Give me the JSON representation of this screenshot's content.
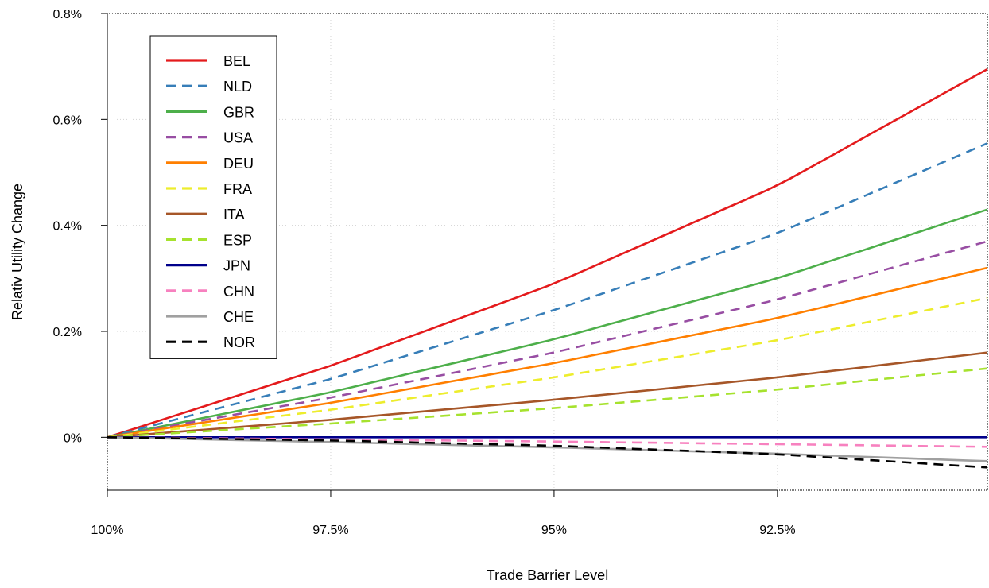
{
  "chart_data": {
    "type": "line",
    "title": "",
    "xlabel": "Trade Barrier Level",
    "ylabel": "Relativ Utility Change",
    "x_axis_reversed": true,
    "xlim": [
      100,
      90.15
    ],
    "ylim": [
      -0.1,
      0.8
    ],
    "x_ticks": [
      100,
      97.5,
      95,
      92.5
    ],
    "x_tick_labels": [
      "100%",
      "97.5%",
      "95%",
      "92.5%"
    ],
    "y_ticks": [
      0,
      0.2,
      0.4,
      0.6,
      0.8
    ],
    "y_tick_labels": [
      "0%",
      "0.2%",
      "0.4%",
      "0.6%",
      "0.8%"
    ],
    "grid": true,
    "legend_position": "top-left",
    "x": [
      100,
      97.5,
      95,
      92.5,
      90.15
    ],
    "series": [
      {
        "name": "BEL",
        "color": "#e41a1c",
        "dash": "solid",
        "values": [
          0,
          0.135,
          0.29,
          0.475,
          0.695
        ]
      },
      {
        "name": "NLD",
        "color": "#377eb8",
        "dash": "dashed",
        "values": [
          0,
          0.11,
          0.24,
          0.385,
          0.555
        ]
      },
      {
        "name": "GBR",
        "color": "#4daf4a",
        "dash": "solid",
        "values": [
          0,
          0.085,
          0.185,
          0.3,
          0.43
        ]
      },
      {
        "name": "USA",
        "color": "#984ea3",
        "dash": "dashed",
        "values": [
          0,
          0.075,
          0.16,
          0.26,
          0.37
        ]
      },
      {
        "name": "DEU",
        "color": "#ff7f00",
        "dash": "solid",
        "values": [
          0,
          0.065,
          0.14,
          0.225,
          0.32
        ]
      },
      {
        "name": "FRA",
        "color": "#eded2d",
        "dash": "dashed",
        "values": [
          0,
          0.052,
          0.113,
          0.183,
          0.263
        ]
      },
      {
        "name": "ITA",
        "color": "#a65628",
        "dash": "solid",
        "values": [
          0,
          0.033,
          0.071,
          0.113,
          0.16
        ]
      },
      {
        "name": "ESP",
        "color": "#a6e22e",
        "dash": "dashed",
        "values": [
          0,
          0.026,
          0.055,
          0.09,
          0.13
        ]
      },
      {
        "name": "JPN",
        "color": "#00008b",
        "dash": "solid",
        "values": [
          0,
          0,
          0,
          0,
          0
        ]
      },
      {
        "name": "CHN",
        "color": "#f781bf",
        "dash": "dashed",
        "values": [
          0,
          -0.004,
          -0.008,
          -0.013,
          -0.018
        ]
      },
      {
        "name": "CHE",
        "color": "#a0a0a0",
        "dash": "solid",
        "values": [
          0,
          -0.009,
          -0.019,
          -0.031,
          -0.045
        ]
      },
      {
        "name": "NOR",
        "color": "#000000",
        "dash": "dashed",
        "values": [
          0,
          -0.006,
          -0.016,
          -0.032,
          -0.057
        ]
      }
    ]
  }
}
